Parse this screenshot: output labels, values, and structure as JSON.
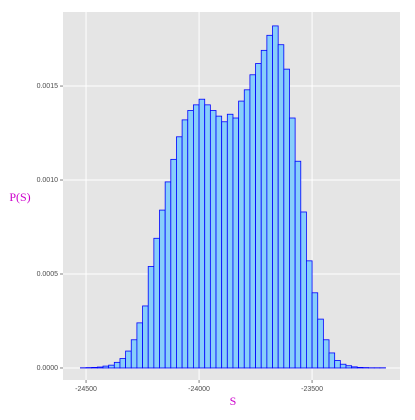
{
  "chart_data": {
    "type": "histogram",
    "xlabel": "S",
    "ylabel": "P(S)",
    "bins": [
      -24525,
      -24500,
      -24475,
      -24450,
      -24425,
      -24400,
      -24375,
      -24350,
      -24325,
      -24300,
      -24275,
      -24250,
      -24225,
      -24200,
      -24175,
      -24150,
      -24125,
      -24100,
      -24075,
      -24050,
      -24025,
      -24000,
      -23975,
      -23950,
      -23925,
      -23900,
      -23875,
      -23850,
      -23825,
      -23800,
      -23775,
      -23750,
      -23725,
      -23700,
      -23675,
      -23650,
      -23625,
      -23600,
      -23575,
      -23550,
      -23525,
      -23500,
      -23475,
      -23450,
      -23425,
      -23400,
      -23375,
      -23350,
      -23325,
      -23300,
      -23275,
      -23250,
      -23225,
      -23200,
      -23175
    ],
    "values": [
      1e-06,
      2e-06,
      3e-06,
      5e-06,
      1e-05,
      1.5e-05,
      3e-05,
      5e-05,
      9e-05,
      0.00015,
      0.00024,
      0.00033,
      0.00054,
      0.00069,
      0.00084,
      0.00099,
      0.00111,
      0.00123,
      0.00132,
      0.00137,
      0.0014,
      0.00143,
      0.0014,
      0.00137,
      0.00134,
      0.00131,
      0.00135,
      0.00133,
      0.00142,
      0.00148,
      0.00156,
      0.00162,
      0.00169,
      0.00177,
      0.00182,
      0.00172,
      0.00159,
      0.00133,
      0.0011,
      0.00083,
      0.00057,
      0.0004,
      0.00026,
      0.00015,
      8e-05,
      4e-05,
      2e-05,
      1.2e-05,
      6e-06,
      3e-06,
      2e-06,
      1e-06,
      1e-06,
      1e-06
    ],
    "color": "#87CEFA",
    "edgecolor": "#0000FF",
    "xlim": [
      -24602,
      -23111
    ],
    "ylim": [
      -6.4e-05,
      0.001894
    ],
    "xticks": [
      -24500,
      -24000,
      -23500
    ],
    "yticks": [
      {
        "value": 0,
        "label": "0.0000"
      },
      {
        "value": 0.0005,
        "label": "0.0005"
      },
      {
        "value": 0.001,
        "label": "0.0010"
      },
      {
        "value": 0.0015,
        "label": "0.0015"
      }
    ],
    "grid": true
  }
}
